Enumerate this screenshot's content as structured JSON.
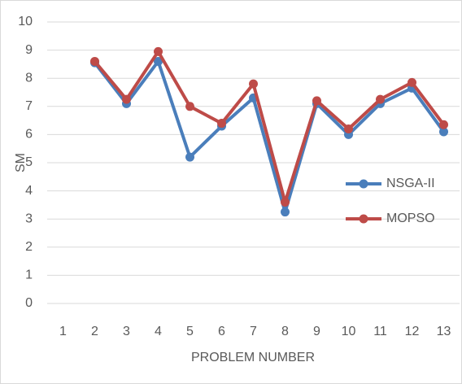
{
  "chart_data": {
    "type": "line",
    "categories": [
      "1",
      "2",
      "3",
      "4",
      "5",
      "6",
      "7",
      "8",
      "9",
      "10",
      "11",
      "12",
      "13"
    ],
    "x_label": "PROBLEM NUMBER",
    "y_label": "SM",
    "series": [
      {
        "name": "NSGA-II",
        "color": "#4a7ebb",
        "values": [
          null,
          8.55,
          7.1,
          8.6,
          5.2,
          6.3,
          7.3,
          3.25,
          7.1,
          6.0,
          7.1,
          7.65,
          6.1
        ]
      },
      {
        "name": "MOPSO",
        "color": "#be4b48",
        "values": [
          null,
          8.6,
          7.25,
          8.95,
          7.0,
          6.4,
          7.8,
          3.6,
          7.2,
          6.2,
          7.25,
          7.85,
          6.35
        ]
      }
    ],
    "ylim": [
      0,
      10
    ],
    "yticks": [
      0,
      1,
      2,
      3,
      4,
      5,
      6,
      7,
      8,
      9,
      10
    ],
    "grid": true,
    "legend": "right"
  }
}
